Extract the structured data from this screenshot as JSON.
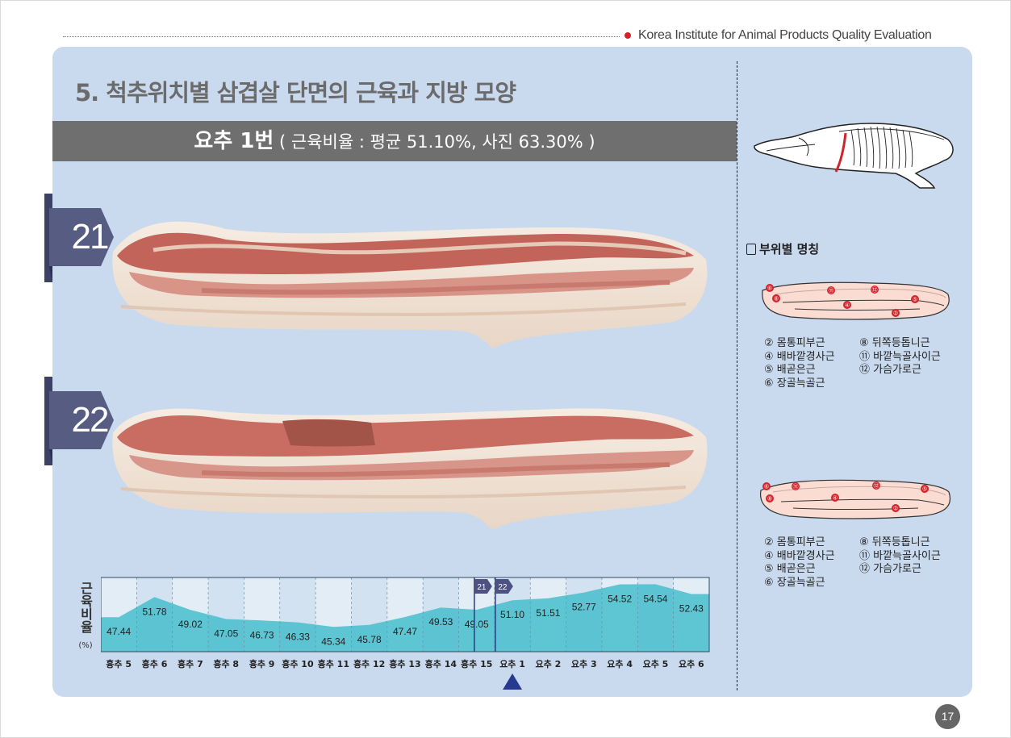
{
  "header": {
    "organization": "Korea Institute for Animal Products Quality Evaluation"
  },
  "section_title": "5. 척추위치별 삼겹살 단면의 근육과 지방 모양",
  "band": {
    "main": "요추 1번",
    "sub": " ( 근육비율 : 평균 51.10%, 사진 63.30% )"
  },
  "photos": [
    {
      "tab": "21"
    },
    {
      "tab": "22"
    }
  ],
  "legend": {
    "heading": "부위별 명칭",
    "list1": [
      "② 몸통피부근",
      "⑧ 뒤쪽등톱니근",
      "④ 배바깥경사근",
      "⑪ 바깥늑골사이근",
      "⑤ 배곧은근",
      "⑫ 가슴가로근",
      "⑥ 장골늑골근",
      ""
    ],
    "list2": [
      "② 몸통피부근",
      "⑧ 뒤쪽등톱니근",
      "④ 배바깥경사근",
      "⑪ 바깥늑골사이근",
      "⑤ 배곧은근",
      "⑫ 가슴가로근",
      "⑥ 장골늑골근",
      ""
    ],
    "diagram1_labels": [
      "⑥",
      "⑪",
      "⑫",
      "⑧",
      "④",
      "⑤",
      "②"
    ],
    "diagram2_labels": [
      "⑥",
      "⑪",
      "⑫",
      "⑧",
      "④",
      "⑤",
      "②"
    ]
  },
  "chart_data": {
    "type": "area",
    "ylabel": "근육비율",
    "yunit": "(%)",
    "categories": [
      "흉추 5",
      "흉추 6",
      "흉추 7",
      "흉추 8",
      "흉추 9",
      "흉추 10",
      "흉추 11",
      "흉추 12",
      "흉추 13",
      "흉추 14",
      "흉추 15",
      "요추 1",
      "요추 2",
      "요추 3",
      "요추 4",
      "요추 5",
      "요추 6"
    ],
    "values": [
      47.44,
      51.78,
      49.02,
      47.05,
      46.73,
      46.33,
      45.34,
      45.78,
      47.47,
      49.53,
      49.05,
      51.1,
      51.51,
      52.77,
      54.52,
      54.54,
      52.43
    ],
    "value_labels": [
      "47.44",
      "51.78",
      "49.02",
      "47.05",
      "46.73",
      "46.33",
      "45.34",
      "45.78",
      "47.47",
      "49.53",
      "49.05",
      "51.10",
      "51.51",
      "52.77",
      "54.52",
      "54.54",
      "52.43"
    ],
    "markers": [
      "21",
      "22"
    ],
    "marker_between": [
      "흉추 15",
      "요추 1"
    ],
    "highlight": "요추 1",
    "ylim": [
      40,
      56
    ]
  },
  "page_number": "17",
  "colors": {
    "panel": "#c9d9ee",
    "band": "#6f6f6f",
    "tab": "#575d82",
    "area": "#3fbecd",
    "marker": "#283a8f",
    "red": "#d2232a"
  }
}
